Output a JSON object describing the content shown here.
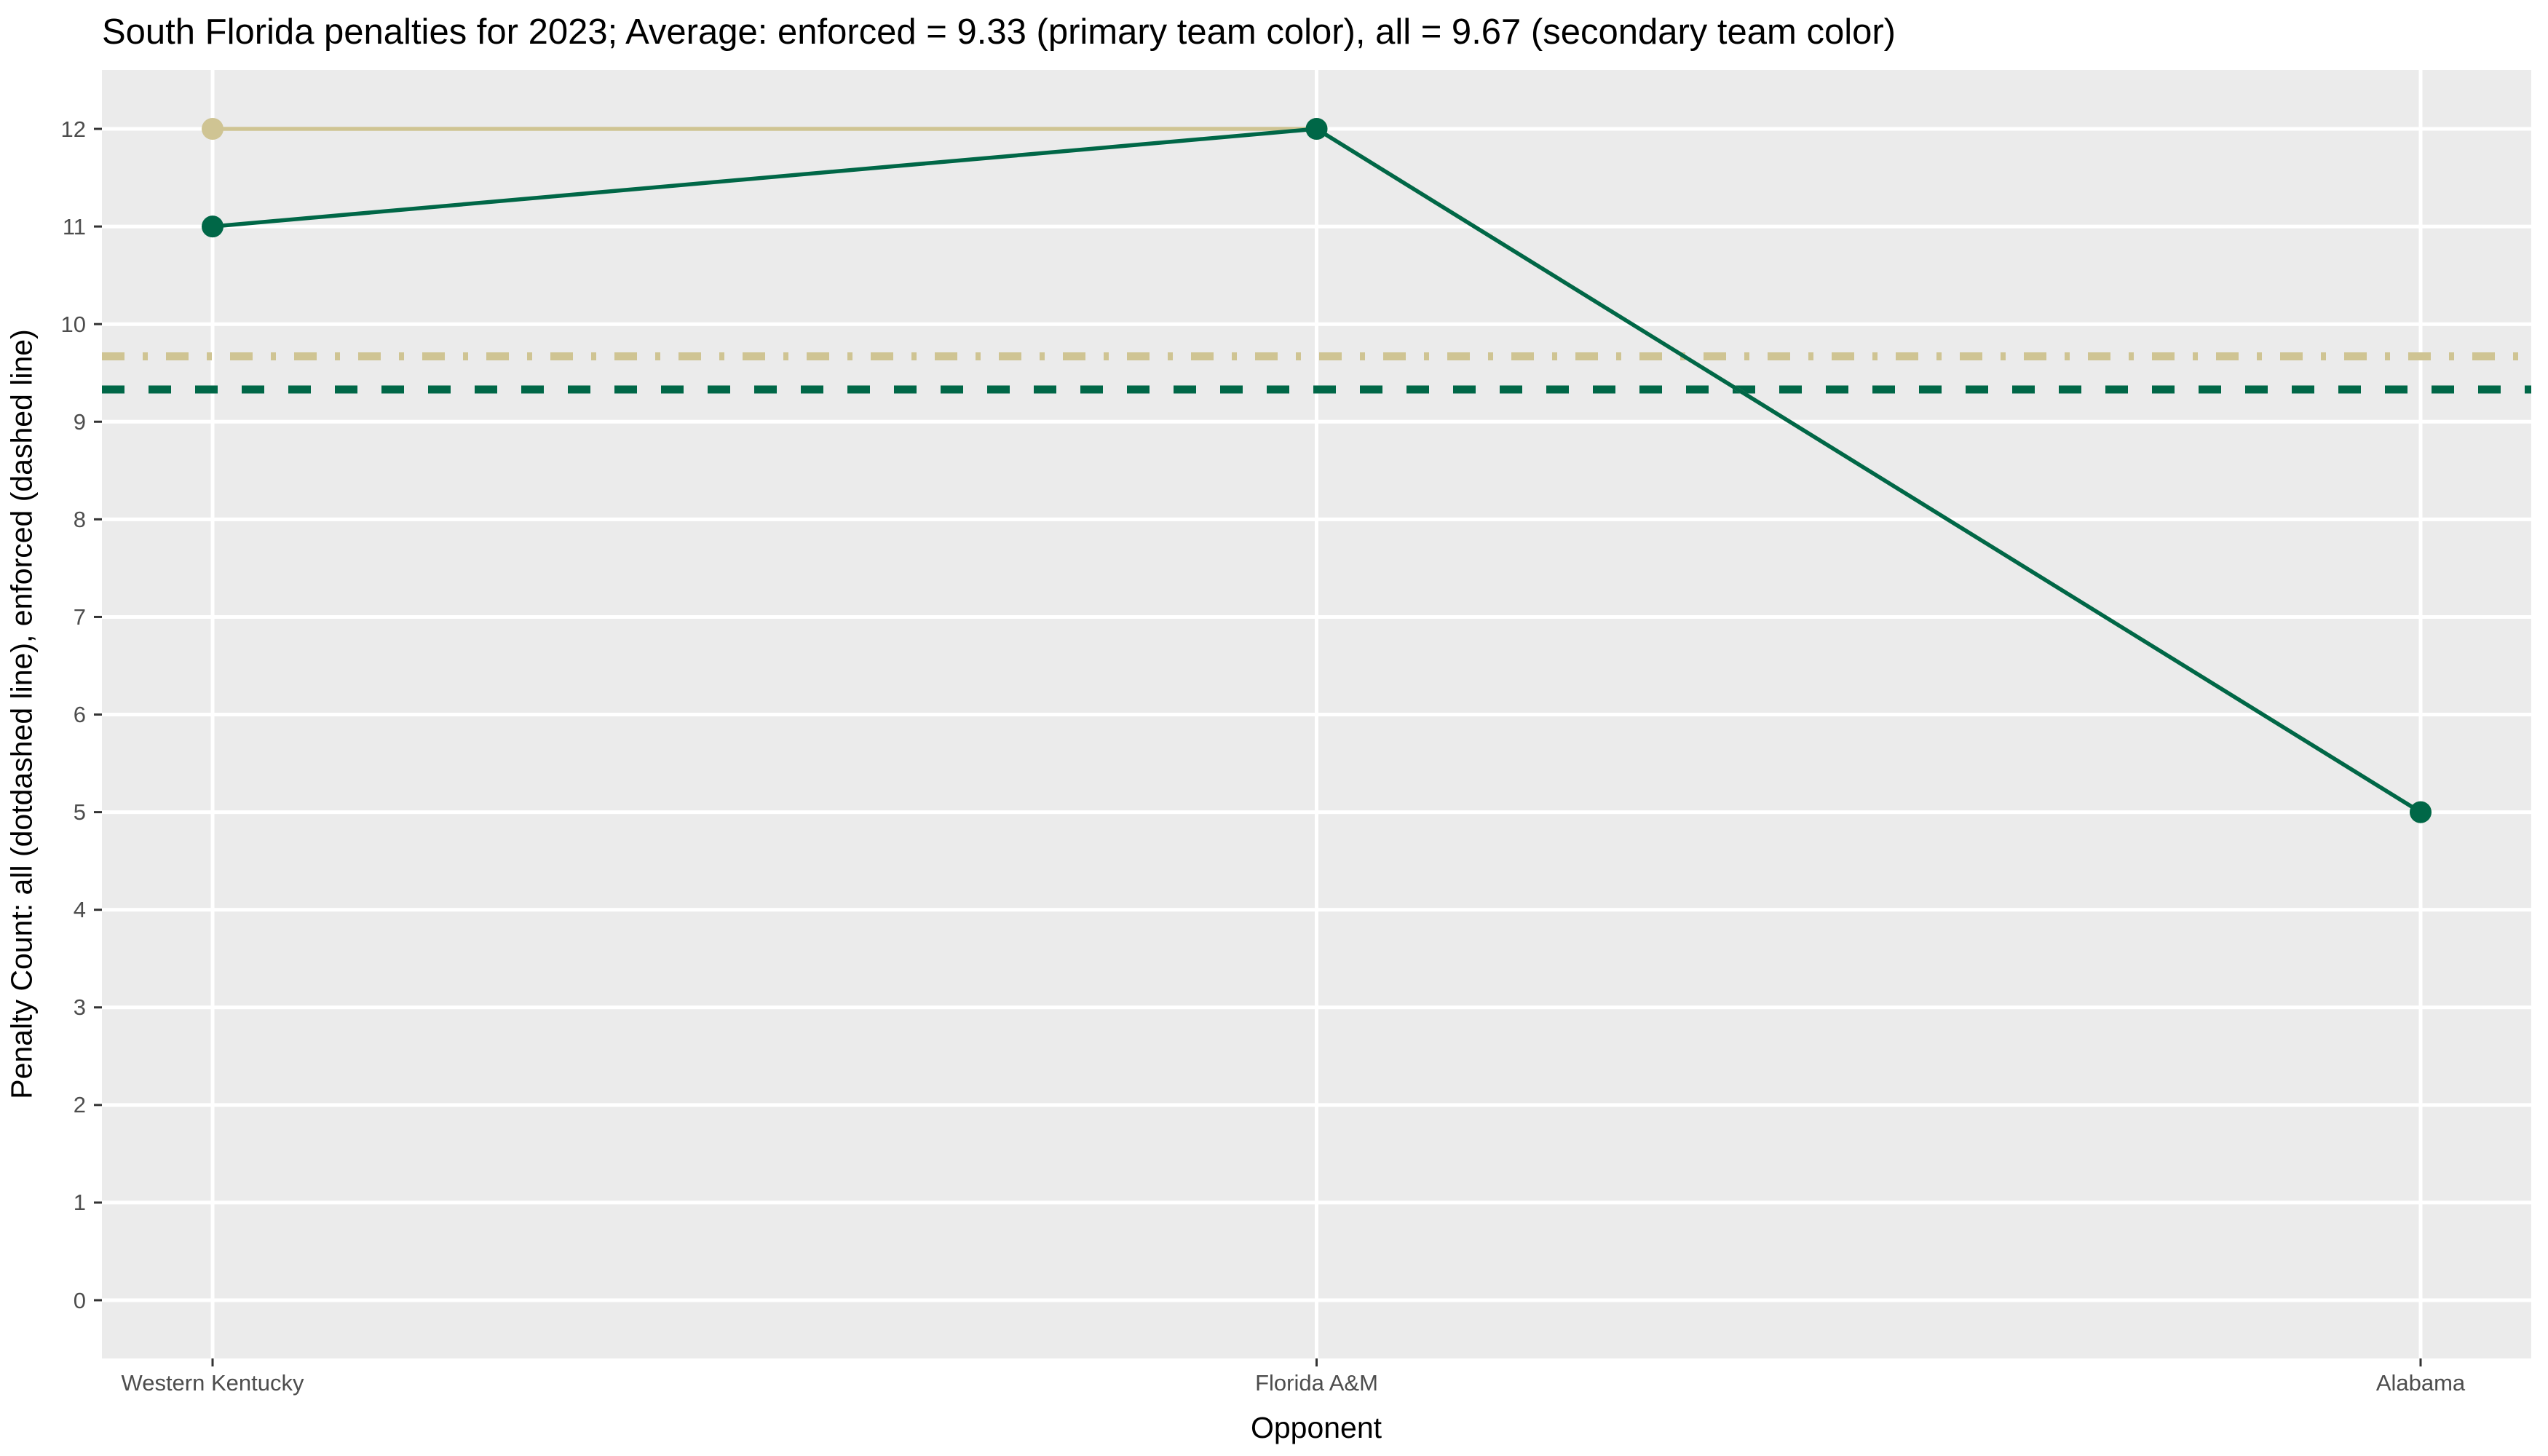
{
  "chart_data": {
    "type": "line",
    "title": "South Florida penalties for 2023; Average: enforced = 9.33 (primary team color), all = 9.67 (secondary team color)",
    "xlabel": "Opponent",
    "ylabel": "Penalty Count: all (dotdashed line), enforced (dashed line)",
    "categories": [
      "Western Kentucky",
      "Florida A&M",
      "Alabama"
    ],
    "series": [
      {
        "name": "all",
        "values": [
          12,
          12,
          5
        ],
        "color": "#CFC493",
        "line_style": "solid",
        "average": 9.67,
        "average_line_style": "dotdash",
        "color_role": "secondary team color"
      },
      {
        "name": "enforced",
        "values": [
          11,
          12,
          5
        ],
        "color": "#006747",
        "line_style": "solid",
        "average": 9.33,
        "average_line_style": "dashed",
        "color_role": "primary team color"
      }
    ],
    "y_ticks": [
      0,
      1,
      2,
      3,
      4,
      5,
      6,
      7,
      8,
      9,
      10,
      11,
      12
    ],
    "ylim": [
      0,
      12
    ],
    "grid": "major-only",
    "legend": "none",
    "panel_bg": "#EBEBEB",
    "grid_color": "#FFFFFF",
    "tick_mark_color": "#333333",
    "tick_label_color": "#4D4D4D",
    "title_color": "#000000"
  }
}
